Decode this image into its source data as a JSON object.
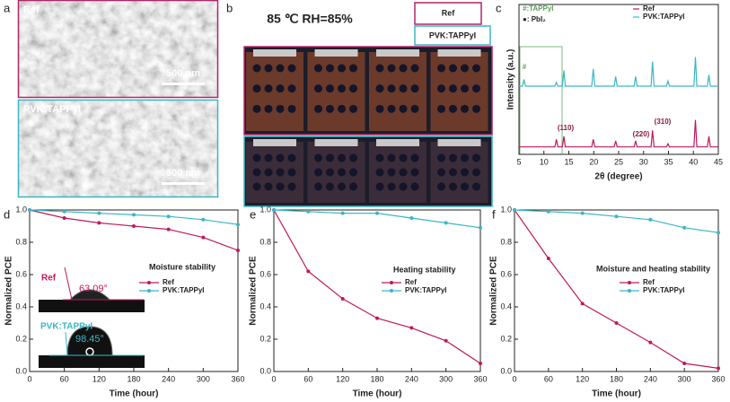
{
  "panel_labels": [
    "a",
    "b",
    "c",
    "d",
    "e",
    "f"
  ],
  "sem": {
    "top_label": "Ref",
    "top_scale": "500 nm",
    "bottom_label": "PVK:TAPPyI",
    "bottom_scale": "500 nm"
  },
  "photo": {
    "title": "85 ℃ RH=85%",
    "legend": [
      "Ref",
      "PVK:TAPPyI"
    ]
  },
  "chart_data": [
    {
      "type": "line",
      "xlabel": "2θ (degree)",
      "ylabel": "Intensity (a.u.)",
      "x": [
        5,
        5.7,
        6.0,
        6.3,
        12.2,
        12.5,
        12.8,
        13.7,
        14.0,
        14.3,
        19.6,
        19.9,
        20.2,
        24.1,
        24.4,
        24.7,
        28.1,
        28.4,
        28.7,
        31.5,
        31.8,
        32.1,
        34.6,
        34.9,
        35.2,
        40.1,
        40.4,
        40.7,
        42.8,
        43.1,
        43.4,
        45
      ],
      "xlim": [
        5,
        45
      ],
      "xticks": [
        5,
        10,
        15,
        20,
        25,
        30,
        35,
        40,
        45
      ],
      "ylim": [
        0,
        100
      ],
      "legend": "upper right",
      "markers": false,
      "series": [
        {
          "name": "Ref",
          "color": "#c0185c",
          "values": [
            5,
            5,
            5,
            5,
            5,
            10,
            5,
            5,
            12,
            5,
            5,
            10,
            5,
            5,
            9,
            5,
            5,
            9,
            5,
            5,
            16,
            5,
            5,
            7,
            5,
            5,
            23,
            5,
            5,
            12,
            5,
            5
          ]
        },
        {
          "name": "PVK:TAPPyI",
          "color": "#3bb6c4",
          "values": [
            45.5,
            45.5,
            50,
            45.5,
            45.5,
            48,
            45.5,
            45.5,
            56,
            45.5,
            45.5,
            57,
            45.5,
            45.5,
            52,
            45.5,
            45.5,
            52,
            45.5,
            45.5,
            62,
            45.5,
            45.5,
            49,
            45.5,
            45.5,
            65,
            45.5,
            45.5,
            53,
            45.5,
            45.5
          ]
        }
      ],
      "annotations": [
        "#:TAPPyI",
        "●: PbI₂",
        "#",
        "(110)",
        "(220)",
        "(310)"
      ]
    },
    {
      "type": "line",
      "xlabel": "Time (hour)",
      "ylabel": "Normalized PCE",
      "x": [
        0,
        60,
        120,
        180,
        240,
        300,
        360
      ],
      "xlim": [
        0,
        360
      ],
      "xticks": [
        0,
        60,
        120,
        180,
        240,
        300,
        360
      ],
      "ylim": [
        0,
        1
      ],
      "yticks": [
        {
          "value": 0,
          "label": "0.0"
        },
        0.2,
        0.4,
        0.6,
        0.8,
        {
          "value": 1,
          "label": "1.0"
        }
      ],
      "legend": "center right",
      "markers": true,
      "series": [
        {
          "name": "Ref",
          "color": "#c0185c",
          "values": [
            1.0,
            0.95,
            0.92,
            0.9,
            0.88,
            0.83,
            0.75
          ]
        },
        {
          "name": "PVK:TAPPyI",
          "color": "#3bb6c4",
          "values": [
            1.0,
            0.99,
            0.98,
            0.97,
            0.96,
            0.94,
            0.91
          ]
        }
      ],
      "annotations": [
        "Moisture stability"
      ],
      "inset": {
        "ref_label": "Ref",
        "ref_angle": "63.09°",
        "pvk_label": "PVK:TAPPyI",
        "pvk_angle": "98.45°"
      }
    },
    {
      "type": "line",
      "xlabel": "Time (hour)",
      "ylabel": "Normalized PCE",
      "x": [
        0,
        60,
        120,
        180,
        240,
        300,
        360
      ],
      "xlim": [
        0,
        360
      ],
      "xticks": [
        0,
        60,
        120,
        180,
        240,
        300,
        360
      ],
      "ylim": [
        0,
        1
      ],
      "yticks": [
        {
          "value": 0,
          "label": "0.0"
        },
        0.2,
        0.4,
        0.6,
        0.8,
        {
          "value": 1,
          "label": "1.0"
        }
      ],
      "legend": "center right",
      "markers": true,
      "series": [
        {
          "name": "Ref",
          "color": "#c0185c",
          "values": [
            1.0,
            0.62,
            0.45,
            0.33,
            0.27,
            0.19,
            0.05
          ]
        },
        {
          "name": "PVK:TAPPyI",
          "color": "#3bb6c4",
          "values": [
            1.0,
            0.99,
            0.98,
            0.98,
            0.95,
            0.92,
            0.89
          ]
        }
      ],
      "annotations": [
        "Heating stability"
      ]
    },
    {
      "type": "line",
      "xlabel": "Time (hour)",
      "ylabel": "Normalized PCE",
      "x": [
        0,
        60,
        120,
        180,
        240,
        300,
        360
      ],
      "xlim": [
        0,
        360
      ],
      "xticks": [
        0,
        60,
        120,
        180,
        240,
        300,
        360
      ],
      "ylim": [
        0,
        1
      ],
      "yticks": [
        {
          "value": 0,
          "label": "0.0"
        },
        0.2,
        0.4,
        0.6,
        0.8,
        {
          "value": 1,
          "label": "1.0"
        }
      ],
      "legend": "center right",
      "markers": true,
      "series": [
        {
          "name": "Ref",
          "color": "#c0185c",
          "values": [
            1.0,
            0.7,
            0.42,
            0.3,
            0.18,
            0.05,
            0.02
          ]
        },
        {
          "name": "PVK:TAPPyI",
          "color": "#3bb6c4",
          "values": [
            1.0,
            0.99,
            0.98,
            0.96,
            0.94,
            0.89,
            0.86
          ]
        }
      ],
      "annotations": [
        "Moisture and heating stability"
      ]
    }
  ]
}
